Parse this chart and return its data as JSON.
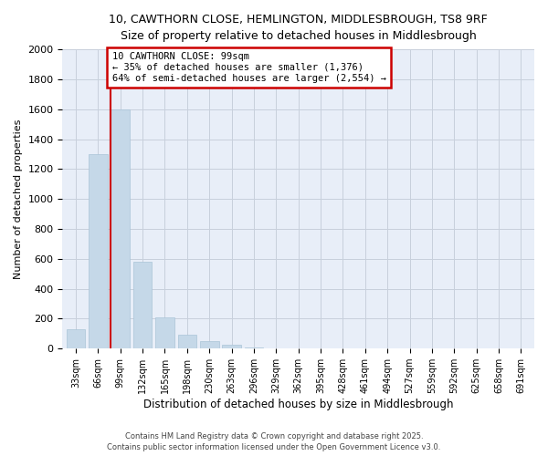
{
  "title_line1": "10, CAWTHORN CLOSE, HEMLINGTON, MIDDLESBROUGH, TS8 9RF",
  "title_line2": "Size of property relative to detached houses in Middlesbrough",
  "xlabel": "Distribution of detached houses by size in Middlesbrough",
  "ylabel": "Number of detached properties",
  "categories": [
    "33sqm",
    "66sqm",
    "99sqm",
    "132sqm",
    "165sqm",
    "198sqm",
    "230sqm",
    "263sqm",
    "296sqm",
    "329sqm",
    "362sqm",
    "395sqm",
    "428sqm",
    "461sqm",
    "494sqm",
    "527sqm",
    "559sqm",
    "592sqm",
    "625sqm",
    "658sqm",
    "691sqm"
  ],
  "values": [
    130,
    1300,
    1600,
    580,
    210,
    95,
    50,
    25,
    5,
    1,
    0,
    0,
    0,
    0,
    0,
    0,
    0,
    0,
    0,
    0,
    0
  ],
  "bar_color": "#c5d8e8",
  "bar_edge_color": "#aac4d8",
  "highlight_color": "#cc0000",
  "highlight_index": 2,
  "annotation_text_line1": "10 CAWTHORN CLOSE: 99sqm",
  "annotation_text_line2": "← 35% of detached houses are smaller (1,376)",
  "annotation_text_line3": "64% of semi-detached houses are larger (2,554) →",
  "annotation_box_color": "#cc0000",
  "ylim": [
    0,
    2000
  ],
  "yticks": [
    0,
    200,
    400,
    600,
    800,
    1000,
    1200,
    1400,
    1600,
    1800,
    2000
  ],
  "grid_color": "#c8d0dc",
  "background_color": "#e8eef8",
  "fig_background": "#ffffff",
  "footer_line1": "Contains HM Land Registry data © Crown copyright and database right 2025.",
  "footer_line2": "Contains public sector information licensed under the Open Government Licence v3.0."
}
